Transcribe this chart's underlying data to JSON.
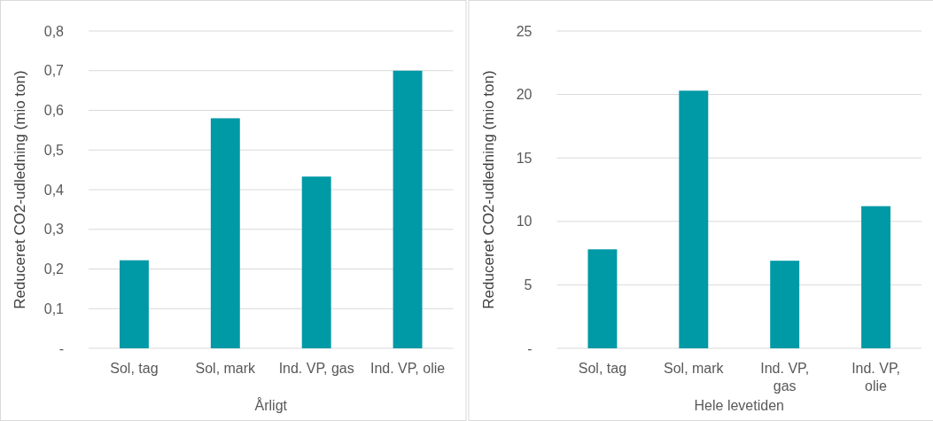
{
  "chart_data": [
    {
      "type": "bar",
      "xlabel": "Årligt",
      "ylabel": "Reduceret CO2-udledning  (mio ton)",
      "categories": [
        "Sol, tag",
        "Sol, mark",
        "Ind. VP, gas",
        "Ind. VP, olie"
      ],
      "values": [
        0.222,
        0.58,
        0.433,
        0.7
      ],
      "color": "#0099a6",
      "ylim": [
        0,
        0.8
      ],
      "yticks": [
        {
          "value": 0,
          "label": "-"
        },
        {
          "value": 0.1,
          "label": "0,1"
        },
        {
          "value": 0.2,
          "label": "0,2"
        },
        {
          "value": 0.3,
          "label": "0,3"
        },
        {
          "value": 0.4,
          "label": "0,4"
        },
        {
          "value": 0.5,
          "label": "0,5"
        },
        {
          "value": 0.6,
          "label": "0,6"
        },
        {
          "value": 0.7,
          "label": "0,7"
        },
        {
          "value": 0.8,
          "label": "0,8"
        }
      ],
      "grid": "y"
    },
    {
      "type": "bar",
      "xlabel": "Hele levetiden",
      "ylabel": "Reduceret CO2-udledning  (mio ton)",
      "categories": [
        "Sol, tag",
        "Sol, mark",
        "Ind. VP, gas",
        "Ind. VP, olie"
      ],
      "values": [
        7.8,
        20.3,
        6.9,
        11.2
      ],
      "color": "#0099a6",
      "ylim": [
        0,
        25
      ],
      "yticks": [
        {
          "value": 0,
          "label": "-"
        },
        5,
        10,
        15,
        20,
        25
      ],
      "grid": "y"
    }
  ]
}
